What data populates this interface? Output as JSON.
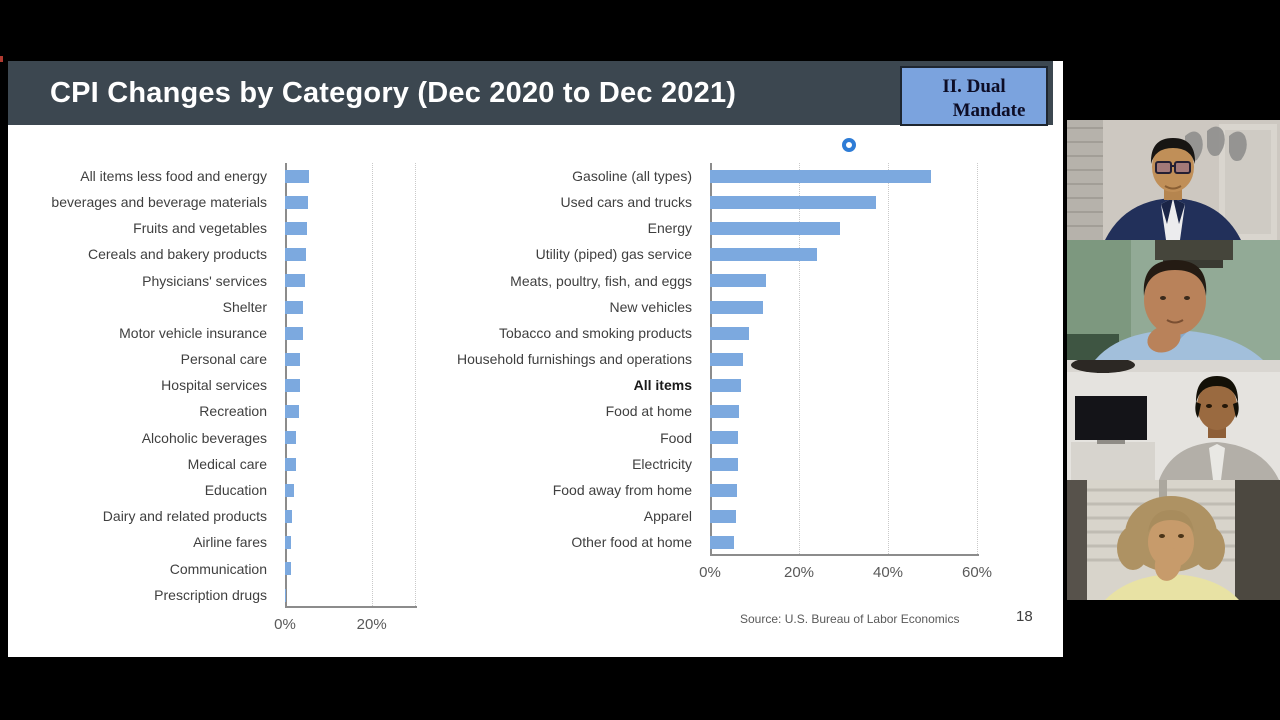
{
  "slide": {
    "title": "CPI Changes by Category (Dec 2020 to Dec 2021)",
    "badge": {
      "line1": "II. Dual",
      "line2": "Mandate"
    },
    "source": "Source: U.S. Bureau of Labor Economics",
    "page_number": "18"
  },
  "chart_data": [
    {
      "type": "bar",
      "orientation": "horizontal",
      "title": "",
      "categories": [
        "All items less food and energy",
        "beverages and beverage materials",
        "Fruits and vegetables",
        "Cereals and bakery products",
        "Physicians' services",
        "Shelter",
        "Motor vehicle insurance",
        "Personal care",
        "Hospital services",
        "Recreation",
        "Alcoholic beverages",
        "Medical care",
        "Education",
        "Dairy and related products",
        "Airline fares",
        "Communication",
        "Prescription drugs"
      ],
      "values": [
        5.5,
        5.2,
        5.0,
        4.8,
        4.5,
        4.1,
        4.1,
        3.5,
        3.4,
        3.3,
        2.5,
        2.5,
        2.1,
        1.6,
        1.4,
        1.4,
        0.3
      ],
      "xlim": [
        0,
        30
      ],
      "xticks": [
        0,
        20
      ],
      "xtick_labels": [
        "0%",
        "20%"
      ],
      "gridlines": [
        20,
        30
      ],
      "legend": "none",
      "bar_color": "#7CA9DF"
    },
    {
      "type": "bar",
      "orientation": "horizontal",
      "title": "",
      "categories": [
        "Gasoline (all types)",
        "Used cars and trucks",
        "Energy",
        "Utility (piped) gas service",
        "Meats, poultry, fish, and eggs",
        "New vehicles",
        "Tobacco and smoking products",
        "Household furnishings and operations",
        "All items",
        "Food at home",
        "Food",
        "Electricity",
        "Food away from home",
        "Apparel",
        "Other food at home"
      ],
      "values": [
        49.6,
        37.3,
        29.3,
        24.1,
        12.5,
        11.8,
        8.7,
        7.4,
        7.0,
        6.5,
        6.3,
        6.3,
        6.0,
        5.8,
        5.5
      ],
      "emphasized": [
        "All items"
      ],
      "xlim": [
        0,
        60
      ],
      "xticks": [
        0,
        20,
        40,
        60
      ],
      "xtick_labels": [
        "0%",
        "20%",
        "40%",
        "60%"
      ],
      "gridlines": [
        20,
        40,
        60
      ],
      "legend": "none",
      "bar_color": "#7CA9DF"
    }
  ],
  "theme": {
    "page_bg": "#000000",
    "slide_bg": "#FFFFFF",
    "header_bg": "#3C4750",
    "header_text": "#FFFFFF",
    "badge_bg": "#7BA3DE",
    "badge_border": "#1E2630",
    "badge_text": "#0D0D26",
    "bar": "#7CA9DF",
    "axis": "#8C8C8C",
    "grid": "#C9C9C9",
    "label": "#3F3F3F",
    "tick": "#595959",
    "source": "#595959",
    "page_num": "#3F3F3F",
    "ring": "#2E7CD6",
    "speck": "#B03A30"
  },
  "webcams": {
    "participant_count": 4
  }
}
